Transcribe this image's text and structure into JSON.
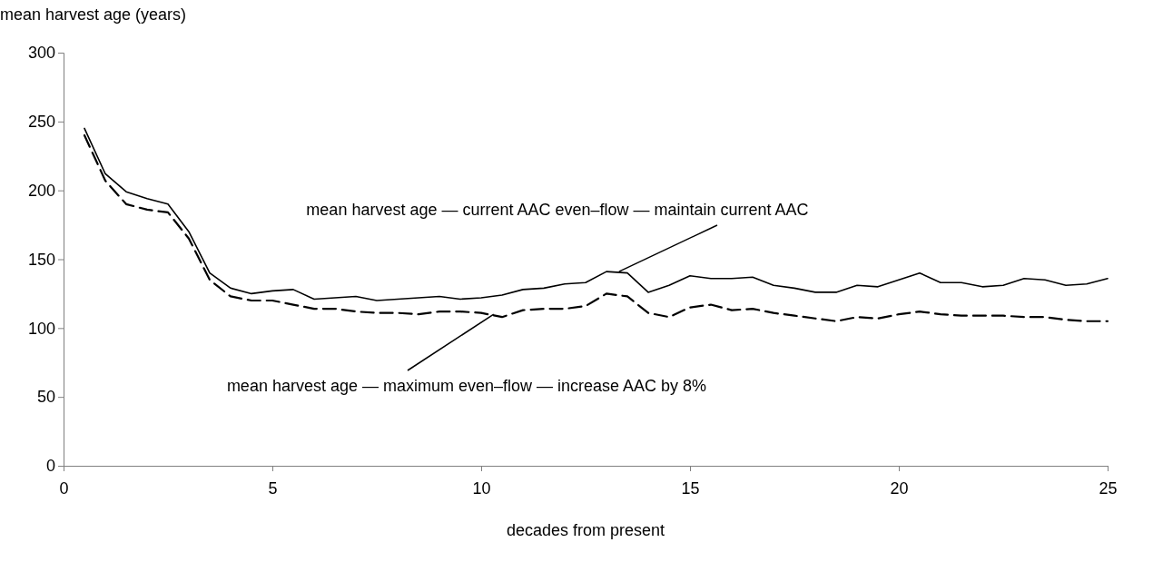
{
  "chart_data": {
    "type": "line",
    "ylabel": "mean harvest age (years)",
    "xlabel": "decades from present",
    "xlim": [
      0,
      25
    ],
    "xticks": [
      0,
      5,
      10,
      15,
      20,
      25
    ],
    "ylim": [
      0,
      300
    ],
    "yticks": [
      0,
      50,
      100,
      150,
      200,
      250,
      300
    ],
    "grid": false,
    "legend": false,
    "x": [
      0.5,
      1,
      1.5,
      2,
      2.5,
      3,
      3.5,
      4,
      4.5,
      5,
      5.5,
      6,
      6.5,
      7,
      7.5,
      8,
      8.5,
      9,
      9.5,
      10,
      10.5,
      11,
      11.5,
      12,
      12.5,
      13,
      13.5,
      14,
      14.5,
      15,
      15.5,
      16,
      16.5,
      17,
      17.5,
      18,
      18.5,
      19,
      19.5,
      20,
      20.5,
      21,
      21.5,
      22,
      22.5,
      23,
      23.5,
      24,
      24.5,
      25
    ],
    "series": [
      {
        "color": "#000000",
        "line_style": "solid",
        "values": [
          245,
          212,
          199,
          194,
          190,
          170,
          140,
          129,
          125,
          127,
          128,
          121,
          122,
          123,
          120,
          121,
          122,
          123,
          121,
          122,
          124,
          128,
          129,
          132,
          133,
          141,
          140,
          126,
          131,
          138,
          136,
          136,
          137,
          131,
          129,
          126,
          126,
          131,
          130,
          135,
          140,
          133,
          133,
          130,
          131,
          136,
          135,
          131,
          132,
          136
        ]
      },
      {
        "color": "#000000",
        "line_style": "dashed",
        "values": [
          240,
          207,
          190,
          186,
          184,
          165,
          135,
          123,
          120,
          120,
          117,
          114,
          114,
          112,
          111,
          111,
          110,
          112,
          112,
          111,
          108,
          113,
          114,
          114,
          116,
          125,
          123,
          111,
          108,
          115,
          117,
          113,
          114,
          111,
          109,
          107,
          105,
          108,
          107,
          110,
          112,
          110,
          109,
          109,
          109,
          108,
          108,
          106,
          105,
          105
        ]
      }
    ],
    "annotations": [
      {
        "text": "mean harvest age — current AAC even–flow — maintain current  AAC",
        "x": 13.3,
        "y": 141
      },
      {
        "text": "mean harvest age — maximum even–flow — increase AAC by 8%",
        "x": 10.3,
        "y": 110
      }
    ]
  }
}
